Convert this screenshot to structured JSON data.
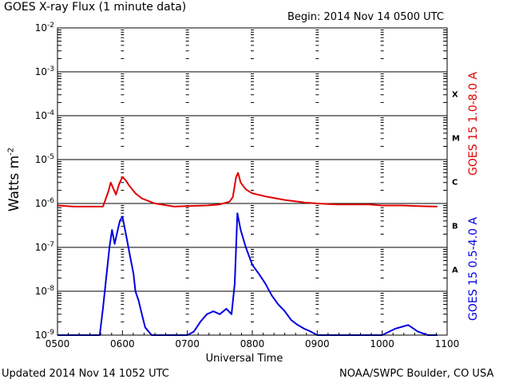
{
  "header": {
    "title": "GOES X-ray Flux (1 minute data)",
    "begin": "Begin: 2014 Nov 14 0500 UTC"
  },
  "footer": {
    "updated": "Updated 2014 Nov 14 1052 UTC",
    "credit": "NOAA/SWPC Boulder, CO USA"
  },
  "chart_data": {
    "type": "line",
    "title": "GOES X-ray Flux (1 minute data)",
    "xlabel": "Universal Time",
    "ylabel": "Watts m",
    "ylabel_sup": "-2",
    "yscale": "log",
    "ylim": [
      1e-09,
      0.01
    ],
    "xlim_utc_hours": [
      5,
      11
    ],
    "x_ticks": [
      "0500",
      "0600",
      "0700",
      "0800",
      "0900",
      "1000",
      "1100"
    ],
    "y_ticks": [
      {
        "base": "10",
        "exp": "-2"
      },
      {
        "base": "10",
        "exp": "-3"
      },
      {
        "base": "10",
        "exp": "-4"
      },
      {
        "base": "10",
        "exp": "-5"
      },
      {
        "base": "10",
        "exp": "-6"
      },
      {
        "base": "10",
        "exp": "-7"
      },
      {
        "base": "10",
        "exp": "-8"
      },
      {
        "base": "10",
        "exp": "-9"
      }
    ],
    "flare_classes": [
      "X",
      "M",
      "C",
      "B",
      "A"
    ],
    "grid": true,
    "series": [
      {
        "name": "GOES 15 1.0-8.0 A",
        "color": "#e00000",
        "x": [
          5.0,
          5.25,
          5.5,
          5.7,
          5.78,
          5.82,
          5.86,
          5.9,
          5.95,
          6.0,
          6.05,
          6.1,
          6.2,
          6.3,
          6.5,
          6.8,
          7.0,
          7.3,
          7.5,
          7.65,
          7.7,
          7.75,
          7.78,
          7.82,
          7.9,
          8.0,
          8.2,
          8.5,
          8.8,
          9.0,
          9.3,
          9.6,
          9.8,
          10.0,
          10.3,
          10.5,
          10.7,
          10.85
        ],
        "y": [
          9e-07,
          8.5e-07,
          8.5e-07,
          8.5e-07,
          1.8e-06,
          3e-06,
          2.2e-06,
          1.6e-06,
          2.8e-06,
          4e-06,
          3.4e-06,
          2.6e-06,
          1.7e-06,
          1.3e-06,
          1e-06,
          8.5e-07,
          8.7e-07,
          9e-07,
          9.5e-07,
          1.1e-06,
          1.4e-06,
          4e-06,
          5e-06,
          3e-06,
          2.1e-06,
          1.7e-06,
          1.45e-06,
          1.2e-06,
          1.05e-06,
          1e-06,
          9.5e-07,
          9.5e-07,
          9.5e-07,
          9e-07,
          9e-07,
          8.8e-07,
          8.6e-07,
          8.5e-07
        ]
      },
      {
        "name": "GOES 15 0.5-4.0 A",
        "color": "#0000e0",
        "x": [
          5.0,
          5.3,
          5.5,
          5.65,
          5.7,
          5.75,
          5.8,
          5.84,
          5.88,
          5.92,
          5.96,
          6.0,
          6.03,
          6.07,
          6.12,
          6.17,
          6.2,
          6.25,
          6.3,
          6.35,
          6.45,
          6.55,
          6.62,
          6.7,
          6.8,
          6.9,
          7.0,
          7.1,
          7.2,
          7.3,
          7.4,
          7.5,
          7.6,
          7.68,
          7.73,
          7.77,
          7.82,
          7.9,
          8.0,
          8.1,
          8.2,
          8.3,
          8.4,
          8.5,
          8.6,
          8.7,
          8.8,
          8.9,
          9.0,
          9.2,
          9.4,
          9.6,
          9.8,
          10.0,
          10.2,
          10.4,
          10.55,
          10.7,
          10.85
        ],
        "y": [
          1e-09,
          1e-09,
          1e-09,
          1e-09,
          4e-09,
          2e-08,
          1e-07,
          2.5e-07,
          1.2e-07,
          2.2e-07,
          4e-07,
          5e-07,
          3e-07,
          1.5e-07,
          6e-08,
          2.5e-08,
          1e-08,
          6e-09,
          3e-09,
          1.5e-09,
          1e-09,
          1e-09,
          1e-09,
          1e-09,
          1e-09,
          1e-09,
          1e-09,
          1.2e-09,
          2e-09,
          3e-09,
          3.5e-09,
          3e-09,
          4e-09,
          3e-09,
          1.5e-08,
          6e-07,
          2.5e-07,
          1e-07,
          4e-08,
          2.5e-08,
          1.5e-08,
          8e-09,
          5e-09,
          3.5e-09,
          2.2e-09,
          1.7e-09,
          1.4e-09,
          1.2e-09,
          1e-09,
          1e-09,
          1e-09,
          1e-09,
          1e-09,
          1e-09,
          1.4e-09,
          1.7e-09,
          1.2e-09,
          1e-09,
          1e-09
        ]
      }
    ]
  }
}
